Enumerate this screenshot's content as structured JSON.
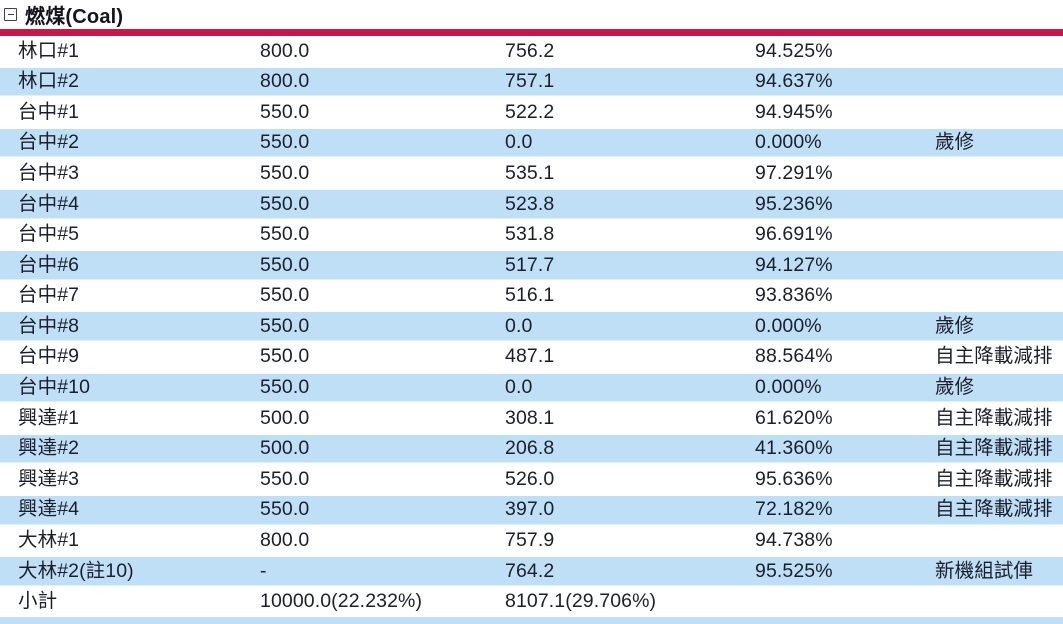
{
  "section": {
    "title": "燃煤(Coal)",
    "collapse_icon": "minus-box-icon"
  },
  "colors": {
    "accent_bar": "#c5184b",
    "row_alt": "#bfdff7",
    "text": "#1c1f2b"
  },
  "table": {
    "columns": [
      "unit",
      "capacity",
      "output",
      "percent",
      "remark"
    ],
    "rows": [
      [
        "林口#1",
        "800.0",
        "756.2",
        "94.525%",
        ""
      ],
      [
        "林口#2",
        "800.0",
        "757.1",
        "94.637%",
        ""
      ],
      [
        "台中#1",
        "550.0",
        "522.2",
        "94.945%",
        ""
      ],
      [
        "台中#2",
        "550.0",
        "0.0",
        "0.000%",
        "歲修"
      ],
      [
        "台中#3",
        "550.0",
        "535.1",
        "97.291%",
        ""
      ],
      [
        "台中#4",
        "550.0",
        "523.8",
        "95.236%",
        ""
      ],
      [
        "台中#5",
        "550.0",
        "531.8",
        "96.691%",
        ""
      ],
      [
        "台中#6",
        "550.0",
        "517.7",
        "94.127%",
        ""
      ],
      [
        "台中#7",
        "550.0",
        "516.1",
        "93.836%",
        ""
      ],
      [
        "台中#8",
        "550.0",
        "0.0",
        "0.000%",
        "歲修"
      ],
      [
        "台中#9",
        "550.0",
        "487.1",
        "88.564%",
        "自主降載減排"
      ],
      [
        "台中#10",
        "550.0",
        "0.0",
        "0.000%",
        "歲修"
      ],
      [
        "興達#1",
        "500.0",
        "308.1",
        "61.620%",
        "自主降載減排"
      ],
      [
        "興達#2",
        "500.0",
        "206.8",
        "41.360%",
        "自主降載減排"
      ],
      [
        "興達#3",
        "550.0",
        "526.0",
        "95.636%",
        "自主降載減排"
      ],
      [
        "興達#4",
        "550.0",
        "397.0",
        "72.182%",
        "自主降載減排"
      ],
      [
        "大林#1",
        "800.0",
        "757.9",
        "94.738%",
        ""
      ],
      [
        "大林#2(註10)",
        "-",
        "764.2",
        "95.525%",
        "新機組試俥"
      ],
      [
        "小計",
        "10000.0(22.232%)",
        "8107.1(29.706%)",
        "",
        ""
      ]
    ]
  }
}
